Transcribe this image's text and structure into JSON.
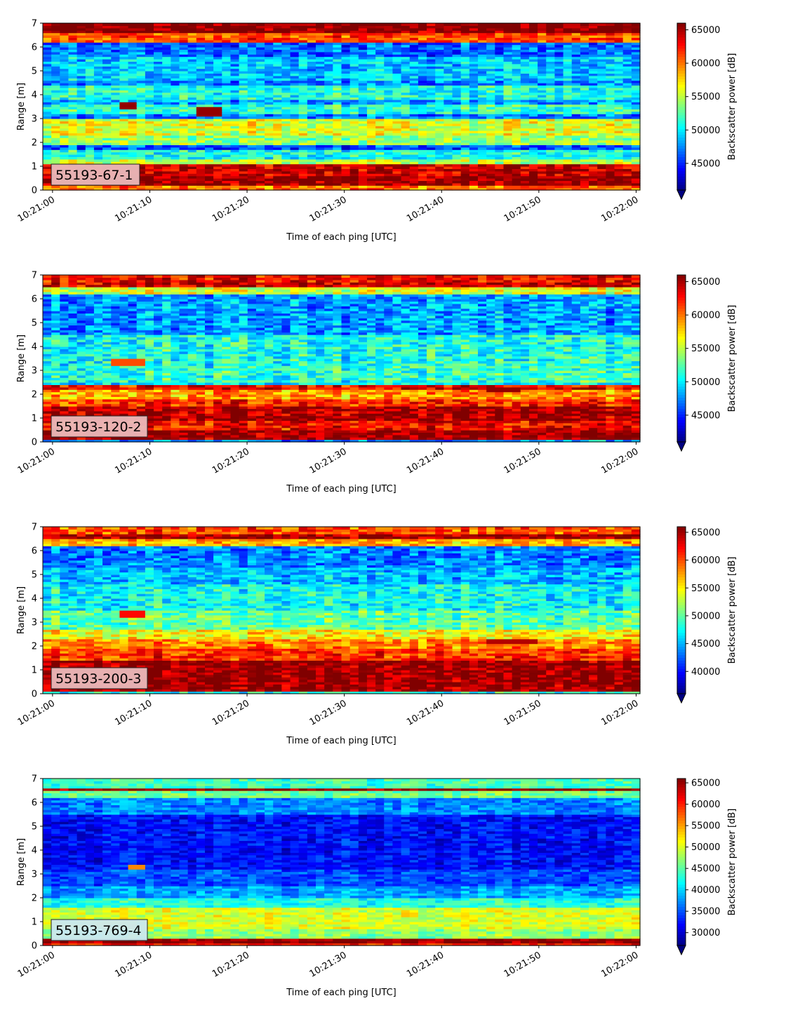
{
  "chart_data": [
    {
      "type": "heatmap",
      "label": "55193-67-1",
      "xlabel": "Time of each ping [UTC]",
      "ylabel": "Range [m]",
      "xticks": [
        "10:21:00",
        "10:21:10",
        "10:21:20",
        "10:21:30",
        "10:21:40",
        "10:21:50",
        "10:22:00"
      ],
      "xlim_seconds": [
        -1,
        60.4
      ],
      "ylim": [
        0,
        7
      ],
      "yticks": [
        "0",
        "1",
        "2",
        "3",
        "4",
        "5",
        "6",
        "7"
      ],
      "colorbar": {
        "label": "Backscatter power [dB]",
        "min": 41000,
        "max": 66000,
        "ticks": [
          45000,
          50000,
          55000,
          60000,
          65000
        ],
        "extend": "min"
      },
      "colormap": "jet",
      "bands": [
        {
          "y": [
            0.0,
            0.2
          ],
          "v": 60000
        },
        {
          "y": [
            0.2,
            0.6
          ],
          "v": 65500
        },
        {
          "y": [
            0.6,
            1.1
          ],
          "v": 64000
        },
        {
          "y": [
            1.1,
            1.3
          ],
          "v": 55000
        },
        {
          "y": [
            1.3,
            1.7
          ],
          "v": 51000
        },
        {
          "y": [
            1.7,
            1.95
          ],
          "v": 46000
        },
        {
          "y": [
            1.95,
            2.3
          ],
          "v": 54000
        },
        {
          "y": [
            2.3,
            3.0
          ],
          "v": 56000
        },
        {
          "y": [
            3.0,
            3.2
          ],
          "v": 47000
        },
        {
          "y": [
            3.2,
            3.6
          ],
          "v": 51500
        },
        {
          "y": [
            3.6,
            3.8
          ],
          "v": 48000
        },
        {
          "y": [
            3.8,
            4.4
          ],
          "v": 51000
        },
        {
          "y": [
            4.4,
            4.6
          ],
          "v": 47500
        },
        {
          "y": [
            4.6,
            5.6
          ],
          "v": 49000
        },
        {
          "y": [
            5.6,
            6.2
          ],
          "v": 46500
        },
        {
          "y": [
            6.2,
            6.6
          ],
          "v": 61000
        },
        {
          "y": [
            6.6,
            7.0
          ],
          "v": 66000
        }
      ],
      "features": [
        {
          "t": [
            6.5,
            9
          ],
          "y": [
            3.4,
            3.7
          ],
          "v": 65500
        },
        {
          "t": [
            14.5,
            17.5
          ],
          "y": [
            3.1,
            3.5
          ],
          "v": 65500
        }
      ],
      "noise": 3800,
      "seed": 11
    },
    {
      "type": "heatmap",
      "label": "55193-120-2",
      "xlabel": "Time of each ping [UTC]",
      "ylabel": "Range [m]",
      "xticks": [
        "10:21:00",
        "10:21:10",
        "10:21:20",
        "10:21:30",
        "10:21:40",
        "10:21:50",
        "10:22:00"
      ],
      "xlim_seconds": [
        -1,
        60.4
      ],
      "ylim": [
        0,
        7
      ],
      "yticks": [
        "0",
        "1",
        "2",
        "3",
        "4",
        "5",
        "6",
        "7"
      ],
      "colorbar": {
        "label": "Backscatter power [dB]",
        "min": 41000,
        "max": 66000,
        "ticks": [
          45000,
          50000,
          55000,
          60000,
          65000
        ],
        "extend": "min"
      },
      "colormap": "jet",
      "bands": [
        {
          "y": [
            0.0,
            0.1
          ],
          "v": 48000
        },
        {
          "y": [
            0.1,
            0.5
          ],
          "v": 65500
        },
        {
          "y": [
            0.5,
            0.9
          ],
          "v": 63000
        },
        {
          "y": [
            0.9,
            1.5
          ],
          "v": 65000
        },
        {
          "y": [
            1.5,
            1.8
          ],
          "v": 62000
        },
        {
          "y": [
            1.8,
            2.2
          ],
          "v": 59000
        },
        {
          "y": [
            2.2,
            2.35
          ],
          "v": 63000
        },
        {
          "y": [
            2.35,
            2.5
          ],
          "v": 50000
        },
        {
          "y": [
            2.5,
            3.2
          ],
          "v": 51500
        },
        {
          "y": [
            3.2,
            4.5
          ],
          "v": 51000
        },
        {
          "y": [
            4.5,
            6.2
          ],
          "v": 48000
        },
        {
          "y": [
            6.2,
            6.45
          ],
          "v": 56000
        },
        {
          "y": [
            6.45,
            6.75
          ],
          "v": 64000
        },
        {
          "y": [
            6.75,
            7.0
          ],
          "v": 63000
        }
      ],
      "features": [
        {
          "t": [
            45,
            48.5
          ],
          "y": [
            2.1,
            2.3
          ],
          "v": 65500
        },
        {
          "t": [
            6,
            9.5
          ],
          "y": [
            3.2,
            3.45
          ],
          "v": 61000
        }
      ],
      "noise": 4000,
      "seed": 23
    },
    {
      "type": "heatmap",
      "label": "55193-200-3",
      "xlabel": "Time of each ping [UTC]",
      "ylabel": "Range [m]",
      "xticks": [
        "10:21:00",
        "10:21:10",
        "10:21:20",
        "10:21:30",
        "10:21:40",
        "10:21:50",
        "10:22:00"
      ],
      "xlim_seconds": [
        -1,
        60.4
      ],
      "ylim": [
        0,
        7
      ],
      "yticks": [
        "0",
        "1",
        "2",
        "3",
        "4",
        "5",
        "6",
        "7"
      ],
      "colorbar": {
        "label": "Backscatter power [dB]",
        "min": 36000,
        "max": 66000,
        "ticks": [
          40000,
          45000,
          50000,
          55000,
          60000,
          65000
        ],
        "extend": "min"
      },
      "colormap": "jet",
      "bands": [
        {
          "y": [
            0.0,
            0.1
          ],
          "v": 48000
        },
        {
          "y": [
            0.1,
            1.4
          ],
          "v": 65500
        },
        {
          "y": [
            1.4,
            1.9
          ],
          "v": 61000
        },
        {
          "y": [
            1.9,
            2.3
          ],
          "v": 58500
        },
        {
          "y": [
            2.3,
            2.7
          ],
          "v": 55000
        },
        {
          "y": [
            2.7,
            3.5
          ],
          "v": 50000
        },
        {
          "y": [
            3.5,
            4.6
          ],
          "v": 47500
        },
        {
          "y": [
            4.6,
            5.3
          ],
          "v": 45500
        },
        {
          "y": [
            5.3,
            6.2
          ],
          "v": 43500
        },
        {
          "y": [
            6.2,
            6.45
          ],
          "v": 57000
        },
        {
          "y": [
            6.45,
            6.7
          ],
          "v": 65000
        },
        {
          "y": [
            6.7,
            7.0
          ],
          "v": 60000
        }
      ],
      "features": [
        {
          "t": [
            45,
            49.5
          ],
          "y": [
            2.1,
            2.3
          ],
          "v": 64500
        },
        {
          "t": [
            6.5,
            9.5
          ],
          "y": [
            3.2,
            3.45
          ],
          "v": 62000
        }
      ],
      "noise": 4500,
      "seed": 37
    },
    {
      "type": "heatmap",
      "label": "55193-769-4",
      "xlabel": "Time of each ping [UTC]",
      "ylabel": "Range [m]",
      "xticks": [
        "10:21:00",
        "10:21:10",
        "10:21:20",
        "10:21:30",
        "10:21:40",
        "10:21:50",
        "10:22:00"
      ],
      "xlim_seconds": [
        -1,
        60.4
      ],
      "ylim": [
        0,
        7
      ],
      "yticks": [
        "0",
        "1",
        "2",
        "3",
        "4",
        "5",
        "6",
        "7"
      ],
      "colorbar": {
        "label": "Backscatter power [dB]",
        "min": 27000,
        "max": 66000,
        "ticks": [
          30000,
          35000,
          40000,
          45000,
          50000,
          55000,
          60000,
          65000
        ],
        "extend": "min"
      },
      "colormap": "jet",
      "bands": [
        {
          "y": [
            0.0,
            0.15
          ],
          "v": 60000
        },
        {
          "y": [
            0.15,
            0.35
          ],
          "v": 65500
        },
        {
          "y": [
            0.35,
            0.7
          ],
          "v": 47000
        },
        {
          "y": [
            0.7,
            1.6
          ],
          "v": 50000
        },
        {
          "y": [
            1.6,
            2.0
          ],
          "v": 43000
        },
        {
          "y": [
            2.0,
            2.5
          ],
          "v": 38000
        },
        {
          "y": [
            2.5,
            3.2
          ],
          "v": 35000
        },
        {
          "y": [
            3.2,
            5.5
          ],
          "v": 32000
        },
        {
          "y": [
            5.5,
            6.2
          ],
          "v": 37000
        },
        {
          "y": [
            6.2,
            6.45
          ],
          "v": 46000
        },
        {
          "y": [
            6.45,
            6.6
          ],
          "v": 65500
        },
        {
          "y": [
            6.6,
            7.0
          ],
          "v": 44000
        }
      ],
      "features": [
        {
          "t": [
            7.5,
            9.5
          ],
          "y": [
            3.2,
            3.4
          ],
          "v": 56000
        }
      ],
      "noise": 4200,
      "seed": 51
    }
  ],
  "colors": {
    "label_box_fill": "#eab9bb",
    "label_box_fill_last": "#cbe8f0",
    "label_box_edge": "#222222"
  }
}
